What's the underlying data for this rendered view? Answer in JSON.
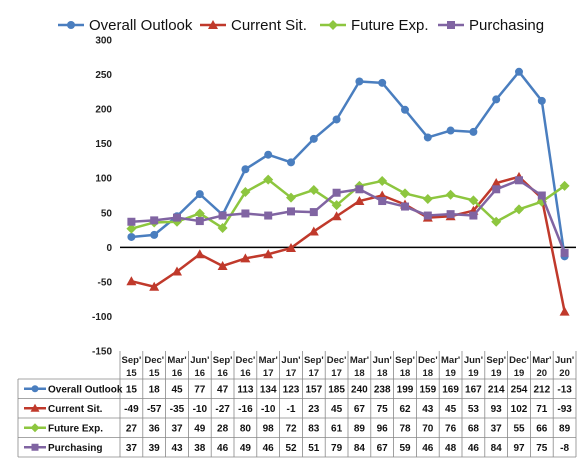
{
  "chart_data": {
    "type": "line",
    "title": "",
    "xlabel": "",
    "ylabel": "",
    "ylim": [
      -150,
      300
    ],
    "yticks": [
      -150,
      -100,
      -50,
      0,
      50,
      100,
      150,
      200,
      250,
      300
    ],
    "grid": false,
    "legend": "top",
    "categories": [
      [
        "Sep'",
        "15"
      ],
      [
        "Dec'",
        "15"
      ],
      [
        "Mar'",
        "16"
      ],
      [
        "Jun'",
        "16"
      ],
      [
        "Sep'",
        "16"
      ],
      [
        "Dec'",
        "16"
      ],
      [
        "Mar'",
        "17"
      ],
      [
        "Jun'",
        "17"
      ],
      [
        "Sep'",
        "17"
      ],
      [
        "Dec'",
        "17"
      ],
      [
        "Mar'",
        "18"
      ],
      [
        "Jun'",
        "18"
      ],
      [
        "Sep'",
        "18"
      ],
      [
        "Dec'",
        "18"
      ],
      [
        "Mar'",
        "19"
      ],
      [
        "Jun'",
        "19"
      ],
      [
        "Sep'",
        "19"
      ],
      [
        "Dec'",
        "19"
      ],
      [
        "Mar'",
        "20"
      ],
      [
        "Jun'",
        "20"
      ]
    ],
    "series": [
      {
        "name": "Overall Outlook",
        "color": "#4a7ebf",
        "marker": "circle",
        "values": [
          15,
          18,
          45,
          77,
          47,
          113,
          134,
          123,
          157,
          185,
          240,
          238,
          199,
          159,
          169,
          167,
          214,
          254,
          212,
          -13
        ]
      },
      {
        "name": "Current Sit.",
        "color": "#c0392b",
        "marker": "triangle",
        "values": [
          -49,
          -57,
          -35,
          -10,
          -27,
          -16,
          -10,
          -1,
          23,
          45,
          67,
          75,
          62,
          43,
          45,
          53,
          93,
          102,
          71,
          -93
        ]
      },
      {
        "name": "Future Exp.",
        "color": "#8dc63f",
        "marker": "diamond",
        "values": [
          27,
          36,
          37,
          49,
          28,
          80,
          98,
          72,
          83,
          61,
          89,
          96,
          78,
          70,
          76,
          68,
          37,
          55,
          66,
          89
        ]
      },
      {
        "name": "Purchasing",
        "color": "#8064a2",
        "marker": "square",
        "values": [
          37,
          39,
          43,
          38,
          46,
          49,
          46,
          52,
          51,
          79,
          84,
          67,
          59,
          46,
          48,
          46,
          84,
          97,
          75,
          -8
        ]
      }
    ]
  }
}
